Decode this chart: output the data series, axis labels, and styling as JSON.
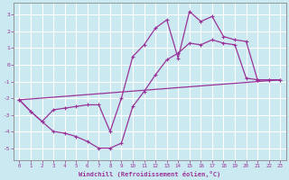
{
  "bg_color": "#cbe9f0",
  "grid_color": "#ffffff",
  "line_color": "#993399",
  "spine_color": "#888888",
  "xlabel": "Windchill (Refroidissement éolien,°C)",
  "xlim": [
    -0.5,
    23.5
  ],
  "ylim": [
    -5.7,
    3.7
  ],
  "yticks": [
    -5,
    -4,
    -3,
    -2,
    -1,
    0,
    1,
    2,
    3
  ],
  "xticks": [
    0,
    1,
    2,
    3,
    4,
    5,
    6,
    7,
    8,
    9,
    10,
    11,
    12,
    13,
    14,
    15,
    16,
    17,
    18,
    19,
    20,
    21,
    22,
    23
  ],
  "line1_x": [
    0,
    1,
    2,
    3,
    4,
    5,
    6,
    7,
    8,
    9,
    10,
    11,
    12,
    13,
    14,
    15,
    16,
    17,
    18,
    19,
    20,
    21,
    22,
    23
  ],
  "line1_y": [
    -2.1,
    -2.8,
    -3.4,
    -4.0,
    -4.1,
    -4.3,
    -4.6,
    -5.0,
    -5.0,
    -4.7,
    -2.5,
    -1.6,
    -0.6,
    0.3,
    0.7,
    1.3,
    1.2,
    1.5,
    1.3,
    1.2,
    -0.8,
    -0.9,
    -0.9,
    -0.9
  ],
  "line2_x": [
    0,
    1,
    2,
    3,
    4,
    5,
    6,
    7,
    8,
    9,
    10,
    11,
    12,
    13,
    14,
    15,
    16,
    17,
    18,
    19,
    20,
    21,
    22,
    23
  ],
  "line2_y": [
    -2.1,
    -2.8,
    -3.4,
    -2.7,
    -2.6,
    -2.5,
    -2.4,
    -2.4,
    -4.0,
    -2.0,
    0.5,
    1.2,
    2.2,
    2.7,
    0.4,
    3.2,
    2.6,
    2.9,
    1.7,
    1.5,
    1.4,
    -0.9,
    -0.9,
    -0.9
  ],
  "line3_x": [
    0,
    23
  ],
  "line3_y": [
    -2.1,
    -0.9
  ]
}
